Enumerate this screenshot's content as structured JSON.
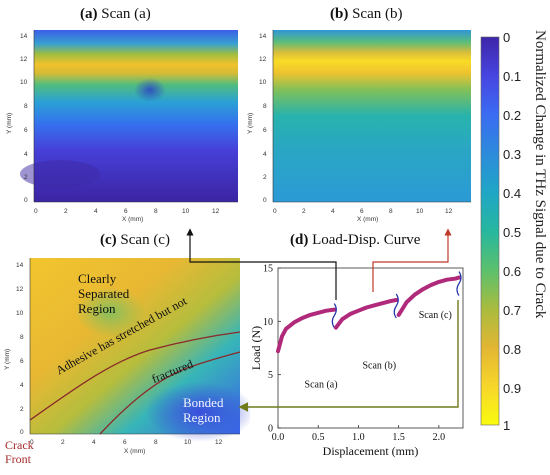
{
  "panels": {
    "a": {
      "letter": "(a)",
      "name": "Scan (a)",
      "xlabel": "X (mm)",
      "ylabel": "Y (mm)",
      "xticks": [
        "0",
        "2",
        "4",
        "6",
        "8",
        "10",
        "12"
      ],
      "yticks": [
        "14",
        "12",
        "10",
        "8",
        "6",
        "4",
        "2",
        "0"
      ]
    },
    "b": {
      "letter": "(b)",
      "name": "Scan (b)",
      "xlabel": "X (mm)",
      "ylabel": "Y (mm)",
      "xticks": [
        "0",
        "2",
        "4",
        "6",
        "8",
        "10",
        "12"
      ],
      "yticks": [
        "14",
        "12",
        "10",
        "8",
        "6",
        "4",
        "2",
        "0"
      ]
    },
    "c": {
      "letter": "(c)",
      "name": "Scan (c)",
      "xlabel": "X (mm)",
      "ylabel": "Y (mm)",
      "xticks": [
        "0",
        "2",
        "4",
        "6",
        "8",
        "10",
        "12"
      ],
      "yticks": [
        "14",
        "12",
        "10",
        "8",
        "6",
        "4",
        "2",
        "0"
      ],
      "region_separated": [
        "Clearly",
        "Separated",
        "Region"
      ],
      "region_adhesive": [
        "Adhesive has stretched but not",
        "fractured"
      ],
      "region_bonded": [
        "Bonded",
        "Region"
      ],
      "crack_front": [
        "Crack",
        "Front"
      ]
    },
    "d": {
      "letter": "(d)",
      "name": "Load-Disp. Curve"
    }
  },
  "colorbar": {
    "label": "Normalized Change in THz Signal due to Crack",
    "ticks": [
      "0",
      "0.1",
      "0.2",
      "0.3",
      "0.4",
      "0.5",
      "0.6",
      "0.7",
      "0.8",
      "0.9",
      "1"
    ],
    "colors": [
      "#3e26a8",
      "#4745e1",
      "#3a6cf2",
      "#2d8bdb",
      "#1fa6c6",
      "#26b79f",
      "#5bc06d",
      "#a9bc3f",
      "#e2b634",
      "#f7d62a",
      "#f9fb0e"
    ]
  },
  "chart_data": {
    "type": "line",
    "xlabel": "Displacement (mm)",
    "ylabel": "Load (N)",
    "xlim": [
      0,
      2.3
    ],
    "ylim": [
      0,
      15
    ],
    "xticks": [
      "0.0",
      "0.5",
      "1.0",
      "1.5",
      "2.0"
    ],
    "yticks": [
      "0",
      "5",
      "10",
      "15"
    ],
    "series": [
      {
        "x": [
          0.0,
          0.05,
          0.1,
          0.2,
          0.3,
          0.4,
          0.5,
          0.6,
          0.7
        ],
        "y": [
          7.2,
          8.6,
          9.3,
          9.9,
          10.3,
          10.6,
          10.8,
          11.0,
          11.1
        ]
      },
      {
        "x": [
          0.72,
          0.8,
          0.9,
          1.0,
          1.1,
          1.2,
          1.3,
          1.4,
          1.47
        ],
        "y": [
          9.4,
          10.2,
          10.7,
          11.0,
          11.3,
          11.5,
          11.7,
          11.9,
          12.0
        ]
      },
      {
        "x": [
          1.5,
          1.6,
          1.7,
          1.8,
          1.9,
          2.0,
          2.1,
          2.2,
          2.25
        ],
        "y": [
          10.6,
          11.8,
          12.5,
          13.0,
          13.4,
          13.7,
          13.9,
          14.0,
          14.1
        ]
      }
    ],
    "annotations": [
      "Scan (a)",
      "Scan (b)",
      "Scan (c)"
    ],
    "line_color": "#b0297a"
  }
}
